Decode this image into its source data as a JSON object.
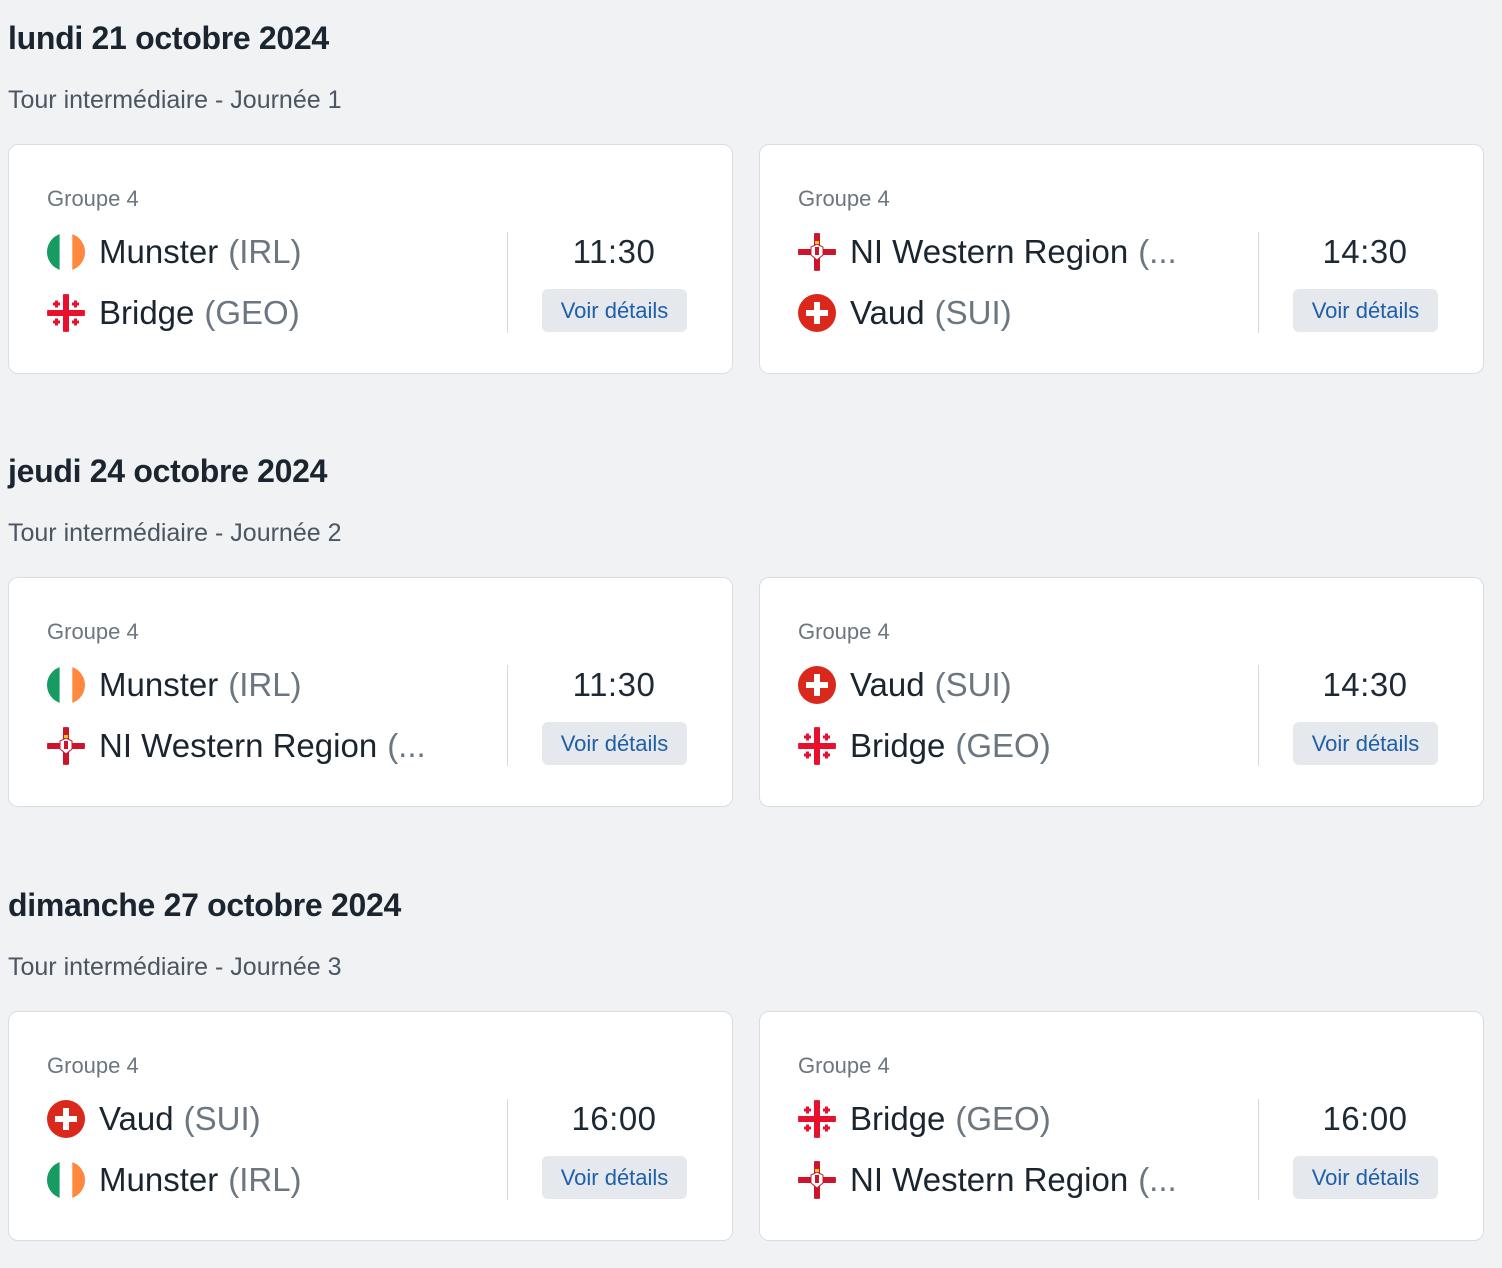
{
  "days": [
    {
      "date": "lundi 21 octobre 2024",
      "round": "Tour intermédiaire - Journée 1",
      "matches": [
        {
          "group": "Groupe 4",
          "home": {
            "name": "Munster",
            "code": "(IRL)",
            "flag": "ireland-flag-icon"
          },
          "away": {
            "name": "Bridge",
            "code": "(GEO)",
            "flag": "georgia-flag-icon"
          },
          "time": "11:30",
          "details_label": "Voir détails"
        },
        {
          "group": "Groupe 4",
          "home": {
            "name": "NI Western Region",
            "code": "(...",
            "flag": "northern-ireland-flag-icon"
          },
          "away": {
            "name": "Vaud",
            "code": "(SUI)",
            "flag": "switzerland-flag-icon"
          },
          "time": "14:30",
          "details_label": "Voir détails"
        }
      ]
    },
    {
      "date": "jeudi 24 octobre 2024",
      "round": "Tour intermédiaire - Journée 2",
      "matches": [
        {
          "group": "Groupe 4",
          "home": {
            "name": "Munster",
            "code": "(IRL)",
            "flag": "ireland-flag-icon"
          },
          "away": {
            "name": "NI Western Region",
            "code": "(...",
            "flag": "northern-ireland-flag-icon"
          },
          "time": "11:30",
          "details_label": "Voir détails"
        },
        {
          "group": "Groupe 4",
          "home": {
            "name": "Vaud",
            "code": "(SUI)",
            "flag": "switzerland-flag-icon"
          },
          "away": {
            "name": "Bridge",
            "code": "(GEO)",
            "flag": "georgia-flag-icon"
          },
          "time": "14:30",
          "details_label": "Voir détails"
        }
      ]
    },
    {
      "date": "dimanche 27 octobre 2024",
      "round": "Tour intermédiaire - Journée 3",
      "matches": [
        {
          "group": "Groupe 4",
          "home": {
            "name": "Vaud",
            "code": "(SUI)",
            "flag": "switzerland-flag-icon"
          },
          "away": {
            "name": "Munster",
            "code": "(IRL)",
            "flag": "ireland-flag-icon"
          },
          "time": "16:00",
          "details_label": "Voir détails"
        },
        {
          "group": "Groupe 4",
          "home": {
            "name": "Bridge",
            "code": "(GEO)",
            "flag": "georgia-flag-icon"
          },
          "away": {
            "name": "NI Western Region",
            "code": "(...",
            "flag": "northern-ireland-flag-icon"
          },
          "time": "16:00",
          "details_label": "Voir détails"
        }
      ]
    }
  ],
  "colors": {
    "background": "#f1f2f4",
    "card": "#ffffff",
    "link": "#1f5ea8",
    "button_bg": "#e5e8ec"
  }
}
